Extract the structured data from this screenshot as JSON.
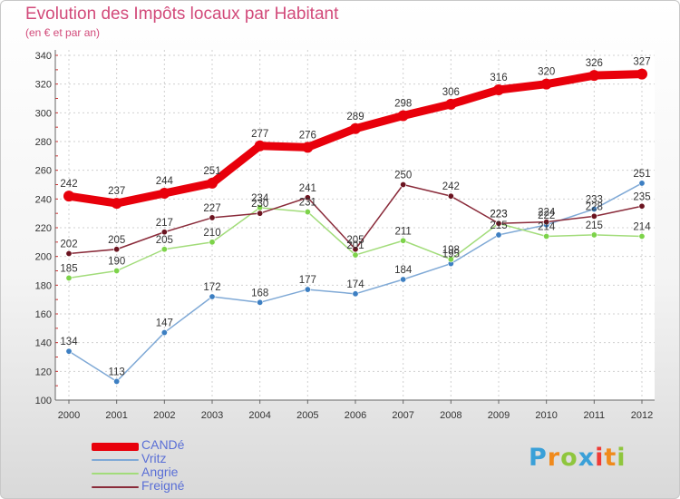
{
  "title": "Evolution des Impôts locaux par Habitant",
  "subtitle": "(en € et par an)",
  "logo": {
    "text": "Proxiti",
    "colors": [
      "#3aa0d8",
      "#f08a1c",
      "#8fc63d",
      "#3aa0d8",
      "#ef3b36",
      "#f08a1c",
      "#8fc63d"
    ]
  },
  "chart_data": {
    "type": "line",
    "x": [
      2000,
      2001,
      2002,
      2003,
      2004,
      2005,
      2006,
      2007,
      2008,
      2009,
      2010,
      2011,
      2012
    ],
    "ylim": [
      100,
      340
    ],
    "yticks": [
      100,
      120,
      140,
      160,
      180,
      200,
      220,
      240,
      260,
      280,
      300,
      320,
      340
    ],
    "grid": true,
    "legend_position": "bottom-left",
    "series": [
      {
        "name": "CANDé",
        "color": "#e8000b",
        "point_color": "#e8000b",
        "values": [
          242,
          237,
          244,
          251,
          277,
          276,
          289,
          298,
          306,
          316,
          320,
          326,
          327
        ]
      },
      {
        "name": "Vritz",
        "color": "#7fa9d6",
        "point_color": "#3d7fc2",
        "values": [
          134,
          113,
          147,
          172,
          168,
          177,
          174,
          184,
          195,
          215,
          222,
          233,
          251
        ]
      },
      {
        "name": "Angrie",
        "color": "#a2dc7a",
        "point_color": "#7dd34a",
        "values": [
          185,
          190,
          205,
          210,
          234,
          231,
          201,
          211,
          198,
          223,
          214,
          215,
          214
        ]
      },
      {
        "name": "Freigné",
        "color": "#8a2b3a",
        "point_color": "#6b1420",
        "values": [
          202,
          205,
          217,
          227,
          230,
          241,
          205,
          250,
          242,
          223,
          224,
          228,
          235
        ]
      }
    ]
  }
}
